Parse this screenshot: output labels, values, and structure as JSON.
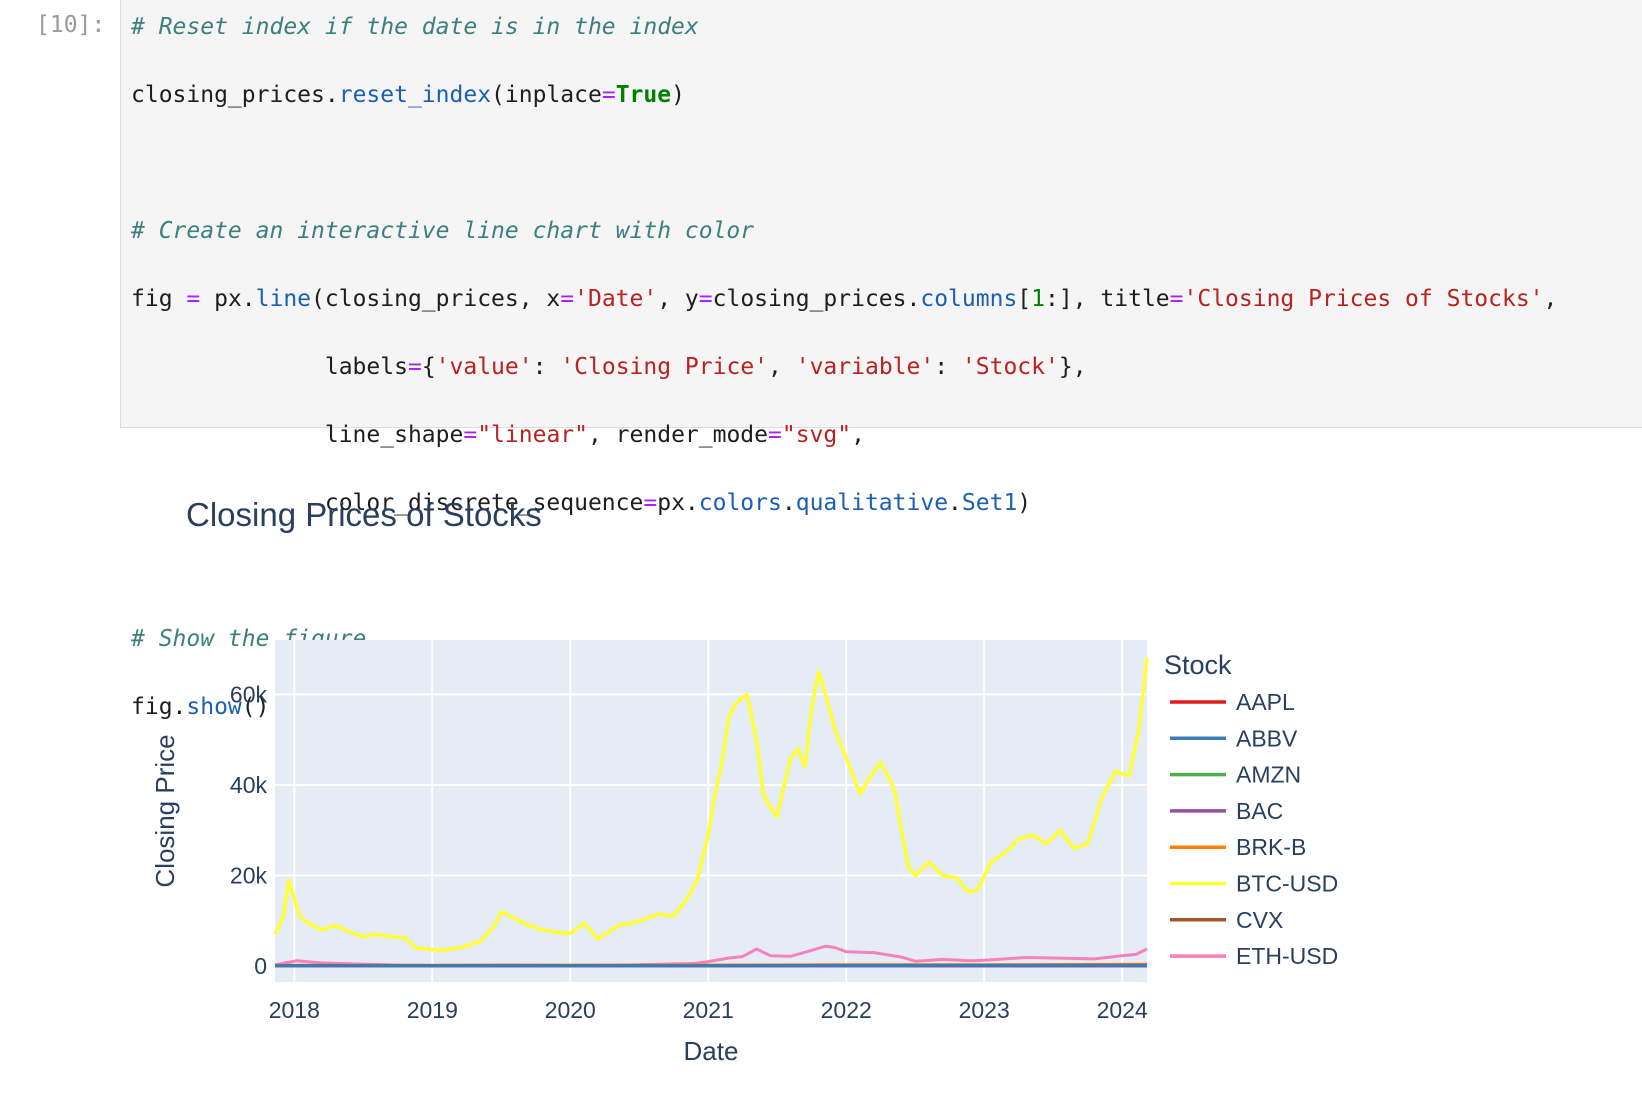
{
  "cell": {
    "prompt": "[10]:",
    "code": {
      "c1": "# Reset index if the date is in the index",
      "l2a": "closing_prices.",
      "l2b": "reset_index",
      "l2c": "(inplace",
      "l2d": "=",
      "l2e": "True",
      "l2f": ")",
      "c2": "# Create an interactive line chart with color",
      "l5a": "fig ",
      "l5b": "=",
      "l5c": " px.",
      "l5d": "line",
      "l5e": "(closing_prices, x",
      "l5f": "=",
      "l5g": "'Date'",
      "l5h": ", y",
      "l5i": "=",
      "l5j": "closing_prices.",
      "l5k": "columns",
      "l5l": "[",
      "l5m": "1",
      "l5n": ":], title",
      "l5o": "=",
      "l5p": "'Closing Prices of Stocks'",
      "l5q": ",",
      "l6a": "              labels",
      "l6b": "=",
      "l6c": "{",
      "l6d": "'value'",
      "l6e": ": ",
      "l6f": "'Closing Price'",
      "l6g": ", ",
      "l6h": "'variable'",
      "l6i": ": ",
      "l6j": "'Stock'",
      "l6k": "},",
      "l7a": "              line_shape",
      "l7b": "=",
      "l7c": "\"linear\"",
      "l7d": ", render_mode",
      "l7e": "=",
      "l7f": "\"svg\"",
      "l7g": ",",
      "l8a": "              color_discrete_sequence",
      "l8b": "=",
      "l8c": "px.",
      "l8d": "colors",
      "l8e": ".",
      "l8f": "qualitative",
      "l8g": ".",
      "l8h": "Set1",
      "l8i": ")",
      "c3": "# Show the figure",
      "l11a": "fig.",
      "l11b": "show",
      "l11c": "()"
    }
  },
  "chart_data": {
    "type": "line",
    "title": "Closing Prices of Stocks",
    "xlabel": "Date",
    "ylabel": "Closing Price",
    "legend_title": "Stock",
    "legend_position": "right",
    "xlim": [
      2017.86,
      2024.18
    ],
    "ylim": [
      -3500,
      72000
    ],
    "x_ticks": [
      2018,
      2019,
      2020,
      2021,
      2022,
      2023,
      2024
    ],
    "x_tick_labels": [
      "2018",
      "2019",
      "2020",
      "2021",
      "2022",
      "2023",
      "2024"
    ],
    "y_ticks": [
      0,
      20000,
      40000,
      60000
    ],
    "y_tick_labels": [
      "0",
      "20k",
      "40k",
      "60k"
    ],
    "series": [
      {
        "name": "AAPL",
        "color": "#e41a1c",
        "x": [
          2017.86,
          2019.0,
          2020.0,
          2021.0,
          2022.0,
          2023.0,
          2024.18
        ],
        "y": [
          42,
          39,
          75,
          130,
          175,
          140,
          175
        ]
      },
      {
        "name": "ABBV",
        "color": "#377eb8",
        "x": [
          2017.86,
          2019.0,
          2020.0,
          2021.0,
          2022.0,
          2023.0,
          2024.18
        ],
        "y": [
          95,
          90,
          88,
          105,
          140,
          160,
          170
        ]
      },
      {
        "name": "AMZN",
        "color": "#4daf4a",
        "x": [
          2017.86,
          2019.0,
          2020.0,
          2021.0,
          2022.0,
          2023.0,
          2024.18
        ],
        "y": [
          60,
          80,
          100,
          160,
          160,
          90,
          175
        ]
      },
      {
        "name": "BAC",
        "color": "#984ea3",
        "x": [
          2017.86,
          2019.0,
          2020.0,
          2021.0,
          2022.0,
          2023.0,
          2024.18
        ],
        "y": [
          28,
          26,
          33,
          32,
          40,
          30,
          35
        ]
      },
      {
        "name": "BRK-B",
        "color": "#ff7f00",
        "x": [
          2017.86,
          2019.0,
          2020.0,
          2021.0,
          2022.0,
          2023.0,
          2024.18
        ],
        "y": [
          190,
          205,
          220,
          230,
          310,
          300,
          410
        ]
      },
      {
        "name": "BTC-USD",
        "color": "#ffff33",
        "x": [
          2017.86,
          2017.92,
          2017.96,
          2018.0,
          2018.04,
          2018.1,
          2018.2,
          2018.3,
          2018.4,
          2018.5,
          2018.6,
          2018.7,
          2018.8,
          2018.88,
          2018.95,
          2019.05,
          2019.2,
          2019.35,
          2019.45,
          2019.5,
          2019.6,
          2019.7,
          2019.8,
          2019.9,
          2020.0,
          2020.1,
          2020.2,
          2020.25,
          2020.35,
          2020.45,
          2020.55,
          2020.65,
          2020.75,
          2020.85,
          2020.92,
          2021.0,
          2021.05,
          2021.1,
          2021.15,
          2021.2,
          2021.28,
          2021.35,
          2021.4,
          2021.45,
          2021.5,
          2021.55,
          2021.6,
          2021.65,
          2021.7,
          2021.75,
          2021.8,
          2021.85,
          2021.92,
          2022.0,
          2022.1,
          2022.2,
          2022.25,
          2022.35,
          2022.4,
          2022.45,
          2022.5,
          2022.6,
          2022.7,
          2022.8,
          2022.88,
          2022.95,
          2023.05,
          2023.15,
          2023.25,
          2023.35,
          2023.45,
          2023.55,
          2023.65,
          2023.75,
          2023.85,
          2023.95,
          2024.05,
          2024.12,
          2024.18
        ],
        "y": [
          7000,
          11000,
          19000,
          15000,
          11000,
          9500,
          8000,
          9000,
          7500,
          6500,
          7000,
          6500,
          6300,
          4000,
          3800,
          3500,
          4000,
          5500,
          9000,
          12000,
          10500,
          9000,
          8000,
          7500,
          7200,
          9500,
          6000,
          7000,
          9000,
          9500,
          10500,
          11500,
          11000,
          15000,
          19000,
          29000,
          38000,
          45000,
          55000,
          58000,
          60000,
          50000,
          38000,
          35000,
          33000,
          40000,
          46000,
          48000,
          44000,
          57000,
          65000,
          60000,
          52000,
          46000,
          38000,
          43000,
          45000,
          39000,
          30000,
          22000,
          20000,
          23000,
          20000,
          19500,
          16500,
          16700,
          23000,
          25000,
          28000,
          29000,
          27000,
          30000,
          26000,
          27000,
          37000,
          43000,
          42000,
          52000,
          68000
        ]
      },
      {
        "name": "CVX",
        "color": "#a65628",
        "x": [
          2017.86,
          2019.0,
          2020.0,
          2021.0,
          2022.0,
          2023.0,
          2024.18
        ],
        "y": [
          120,
          110,
          115,
          95,
          160,
          175,
          155
        ]
      },
      {
        "name": "ETH-USD",
        "color": "#f781bf",
        "x": [
          2017.86,
          2017.95,
          2018.02,
          2018.2,
          2018.5,
          2018.8,
          2019.0,
          2019.5,
          2020.0,
          2020.5,
          2020.9,
          2021.0,
          2021.15,
          2021.25,
          2021.35,
          2021.45,
          2021.6,
          2021.75,
          2021.85,
          2021.92,
          2022.0,
          2022.2,
          2022.4,
          2022.5,
          2022.7,
          2022.9,
          2023.0,
          2023.3,
          2023.5,
          2023.8,
          2024.0,
          2024.1,
          2024.18
        ],
        "y": [
          300,
          800,
          1200,
          700,
          450,
          200,
          150,
          250,
          150,
          300,
          600,
          1000,
          1800,
          2100,
          3800,
          2300,
          2200,
          3500,
          4400,
          4100,
          3200,
          3000,
          2000,
          1100,
          1500,
          1200,
          1300,
          1900,
          1800,
          1600,
          2300,
          2600,
          3800
        ]
      }
    ]
  }
}
